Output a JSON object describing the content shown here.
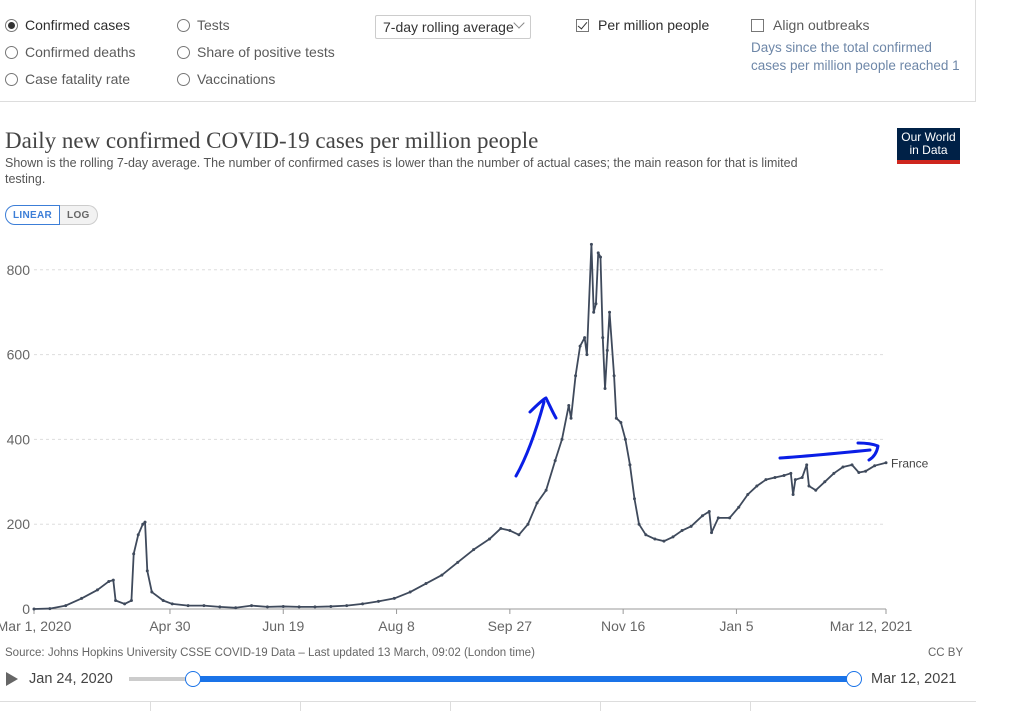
{
  "controls": {
    "metric_options": [
      {
        "label": "Confirmed cases",
        "selected": true
      },
      {
        "label": "Confirmed deaths",
        "selected": false
      },
      {
        "label": "Case fatality rate",
        "selected": false
      },
      {
        "label": "Tests",
        "selected": false
      },
      {
        "label": "Share of positive tests",
        "selected": false
      },
      {
        "label": "Vaccinations",
        "selected": false
      }
    ],
    "interval_value": "7-day rolling average",
    "per_million_label": "Per million people",
    "per_million_checked": true,
    "align_label": "Align outbreaks",
    "align_checked": false,
    "align_note": "Days since the total confirmed cases per million people reached 1"
  },
  "logo_text": "Our World in Data",
  "scale_toggle": {
    "linear": "LINEAR",
    "log": "LOG",
    "active": "linear"
  },
  "source": "Source: Johns Hopkins University CSSE COVID-19 Data – Last updated 13 March, 09:02 (London time)",
  "license": "CC BY",
  "timeline": {
    "start": "Jan 24, 2020",
    "end": "Mar 12, 2021"
  },
  "colors": {
    "line": "#3f4a5c",
    "annotation": "#0a1ee6",
    "accent": "#1a73e8",
    "logo_bg": "#002147",
    "logo_bar": "#ce261e"
  },
  "chart_data": {
    "type": "line",
    "title": "Daily new confirmed COVID-19 cases per million people",
    "subtitle": "Shown is the rolling 7-day average. The number of confirmed cases is lower than the number of actual cases; the main reason for that is limited testing.",
    "series": [
      {
        "name": "France",
        "points": [
          [
            "2020-03-01",
            0
          ],
          [
            "2020-03-08",
            1
          ],
          [
            "2020-03-15",
            8
          ],
          [
            "2020-03-22",
            25
          ],
          [
            "2020-03-29",
            45
          ],
          [
            "2020-04-03",
            65
          ],
          [
            "2020-04-05",
            68
          ],
          [
            "2020-04-06",
            20
          ],
          [
            "2020-04-10",
            12
          ],
          [
            "2020-04-13",
            20
          ],
          [
            "2020-04-14",
            130
          ],
          [
            "2020-04-16",
            175
          ],
          [
            "2020-04-18",
            200
          ],
          [
            "2020-04-19",
            205
          ],
          [
            "2020-04-20",
            90
          ],
          [
            "2020-04-22",
            40
          ],
          [
            "2020-04-27",
            20
          ],
          [
            "2020-05-01",
            12
          ],
          [
            "2020-05-08",
            8
          ],
          [
            "2020-05-15",
            8
          ],
          [
            "2020-05-22",
            5
          ],
          [
            "2020-05-29",
            3
          ],
          [
            "2020-06-05",
            8
          ],
          [
            "2020-06-12",
            5
          ],
          [
            "2020-06-19",
            6
          ],
          [
            "2020-06-26",
            5
          ],
          [
            "2020-07-03",
            5
          ],
          [
            "2020-07-10",
            6
          ],
          [
            "2020-07-17",
            8
          ],
          [
            "2020-07-24",
            12
          ],
          [
            "2020-07-31",
            18
          ],
          [
            "2020-08-07",
            25
          ],
          [
            "2020-08-14",
            40
          ],
          [
            "2020-08-21",
            60
          ],
          [
            "2020-08-28",
            80
          ],
          [
            "2020-09-04",
            110
          ],
          [
            "2020-09-11",
            140
          ],
          [
            "2020-09-18",
            165
          ],
          [
            "2020-09-23",
            190
          ],
          [
            "2020-09-27",
            185
          ],
          [
            "2020-10-01",
            175
          ],
          [
            "2020-10-05",
            200
          ],
          [
            "2020-10-09",
            250
          ],
          [
            "2020-10-13",
            280
          ],
          [
            "2020-10-17",
            350
          ],
          [
            "2020-10-20",
            400
          ],
          [
            "2020-10-23",
            480
          ],
          [
            "2020-10-24",
            450
          ],
          [
            "2020-10-26",
            550
          ],
          [
            "2020-10-28",
            620
          ],
          [
            "2020-10-30",
            640
          ],
          [
            "2020-10-31",
            600
          ],
          [
            "2020-11-02",
            860
          ],
          [
            "2020-11-03",
            700
          ],
          [
            "2020-11-04",
            720
          ],
          [
            "2020-11-05",
            840
          ],
          [
            "2020-11-06",
            830
          ],
          [
            "2020-11-07",
            640
          ],
          [
            "2020-11-08",
            520
          ],
          [
            "2020-11-09",
            610
          ],
          [
            "2020-11-10",
            700
          ],
          [
            "2020-11-12",
            550
          ],
          [
            "2020-11-13",
            450
          ],
          [
            "2020-11-15",
            440
          ],
          [
            "2020-11-17",
            400
          ],
          [
            "2020-11-19",
            340
          ],
          [
            "2020-11-21",
            260
          ],
          [
            "2020-11-23",
            200
          ],
          [
            "2020-11-26",
            175
          ],
          [
            "2020-11-30",
            165
          ],
          [
            "2020-12-04",
            160
          ],
          [
            "2020-12-08",
            170
          ],
          [
            "2020-12-12",
            185
          ],
          [
            "2020-12-16",
            195
          ],
          [
            "2020-12-21",
            220
          ],
          [
            "2020-12-24",
            230
          ],
          [
            "2020-12-25",
            180
          ],
          [
            "2020-12-28",
            215
          ],
          [
            "2021-01-02",
            215
          ],
          [
            "2021-01-06",
            240
          ],
          [
            "2021-01-10",
            270
          ],
          [
            "2021-01-14",
            290
          ],
          [
            "2021-01-18",
            305
          ],
          [
            "2021-01-22",
            310
          ],
          [
            "2021-01-26",
            315
          ],
          [
            "2021-01-29",
            320
          ],
          [
            "2021-01-30",
            270
          ],
          [
            "2021-01-31",
            305
          ],
          [
            "2021-02-03",
            310
          ],
          [
            "2021-02-05",
            340
          ],
          [
            "2021-02-06",
            290
          ],
          [
            "2021-02-09",
            280
          ],
          [
            "2021-02-13",
            300
          ],
          [
            "2021-02-17",
            320
          ],
          [
            "2021-02-21",
            335
          ],
          [
            "2021-02-25",
            340
          ],
          [
            "2021-02-28",
            322
          ],
          [
            "2021-03-03",
            325
          ],
          [
            "2021-03-07",
            338
          ],
          [
            "2021-03-12",
            345
          ]
        ]
      }
    ],
    "x_ticks": [
      {
        "date": "2020-03-01",
        "label": "Mar 1, 2020"
      },
      {
        "date": "2020-04-30",
        "label": "Apr 30"
      },
      {
        "date": "2020-06-19",
        "label": "Jun 19"
      },
      {
        "date": "2020-08-08",
        "label": "Aug 8"
      },
      {
        "date": "2020-09-27",
        "label": "Sep 27"
      },
      {
        "date": "2020-11-16",
        "label": "Nov 16"
      },
      {
        "date": "2021-01-05",
        "label": "Jan 5"
      },
      {
        "date": "2021-03-12",
        "label": "Mar 12, 2021"
      }
    ],
    "xlim": [
      "2020-03-01",
      "2021-03-12"
    ],
    "y_ticks": [
      0,
      200,
      400,
      600,
      800
    ],
    "ylim": [
      0,
      875
    ],
    "grid": "horizontal dashed",
    "scale": "linear"
  }
}
